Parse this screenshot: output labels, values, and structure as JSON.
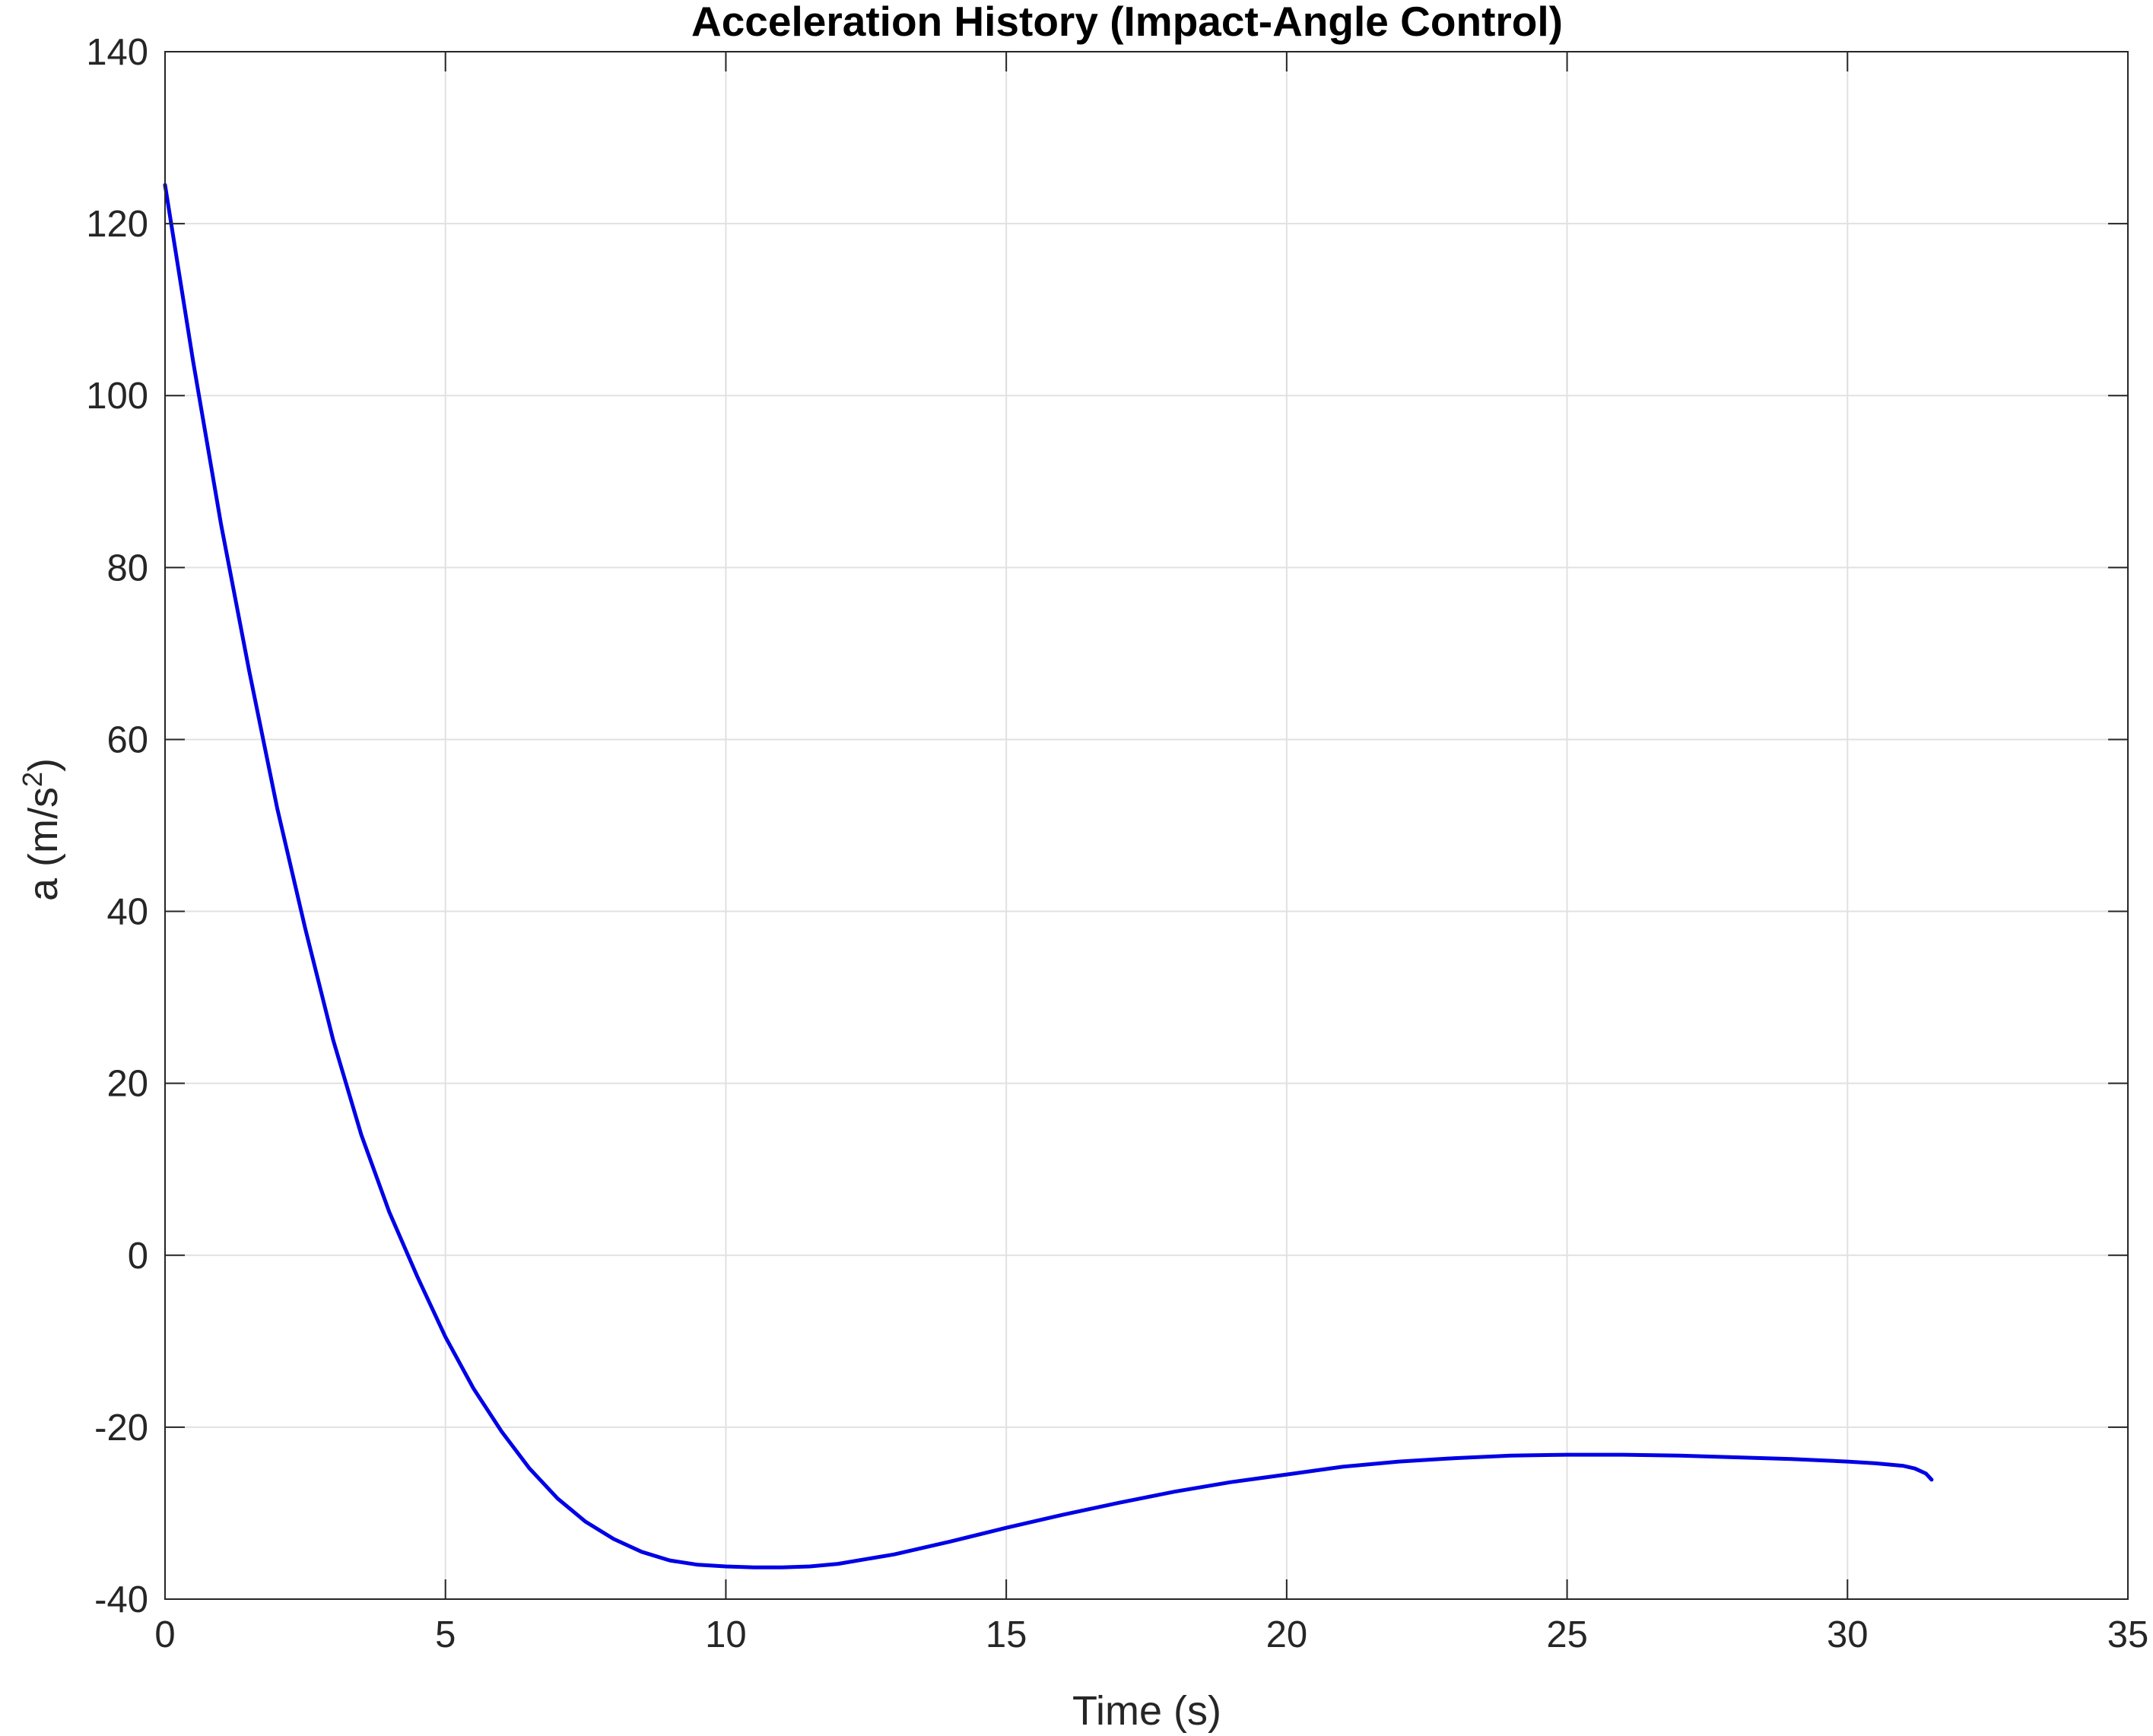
{
  "chart_data": {
    "type": "line",
    "title": "Acceleration History (Impact-Angle Control)",
    "xlabel": "Time (s)",
    "ylabel_main": "a (m/s",
    "ylabel_sup": "2",
    "ylabel_close": ")",
    "xlim": [
      0,
      35
    ],
    "ylim": [
      -40,
      140
    ],
    "xticks": [
      0,
      5,
      10,
      15,
      20,
      25,
      30,
      35
    ],
    "yticks": [
      -40,
      -20,
      0,
      20,
      40,
      60,
      80,
      100,
      120,
      140
    ],
    "grid": true,
    "colors": {
      "line": "#0000e6",
      "grid": "#e1e1e1",
      "axis": "#262626"
    },
    "series": [
      {
        "x": [
          0,
          0.5,
          1,
          1.5,
          2,
          2.5,
          3,
          3.5,
          4,
          4.5,
          5,
          5.5,
          6,
          6.5,
          7,
          7.5,
          8,
          8.5,
          9,
          9.5,
          10,
          10.5,
          11,
          11.5,
          12,
          13,
          14,
          15,
          16,
          17,
          18,
          19,
          20,
          21,
          22,
          23,
          24,
          25,
          26,
          27,
          28,
          29,
          30,
          30.5,
          31,
          31.2,
          31.4,
          31.5
        ],
        "y": [
          124.5,
          104,
          85,
          68,
          52,
          38,
          25,
          14,
          5,
          -2.5,
          -9.5,
          -15.5,
          -20.5,
          -24.8,
          -28.3,
          -31,
          -33,
          -34.5,
          -35.5,
          -36,
          -36.2,
          -36.3,
          -36.3,
          -36.2,
          -35.9,
          -34.8,
          -33.3,
          -31.7,
          -30.2,
          -28.8,
          -27.5,
          -26.4,
          -25.5,
          -24.6,
          -24,
          -23.6,
          -23.3,
          -23.2,
          -23.2,
          -23.3,
          -23.5,
          -23.7,
          -24,
          -24.2,
          -24.5,
          -24.8,
          -25.4,
          -26.1
        ]
      }
    ]
  }
}
